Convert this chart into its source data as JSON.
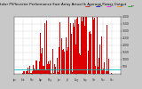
{
  "title": "Solar PV/Inverter Performance East Array Actual & Average Power Output",
  "bg_color": "#c8c8c8",
  "plot_bg": "#ffffff",
  "bar_color": "#dd0000",
  "avg_line_color": "#00bbbb",
  "grid_color": "#999999",
  "ylim": [
    0,
    4000
  ],
  "yticks": [
    500,
    1000,
    1500,
    2000,
    2500,
    3000,
    3500,
    4000
  ],
  "ytick_labels": [
    "500",
    "1000",
    "1500",
    "2000",
    "2500",
    "3000",
    "3500",
    "4000"
  ],
  "avg_line_y": 320,
  "n_bars": 144,
  "seed": 12,
  "legend_colors": [
    "#dd0000",
    "#0000dd",
    "#ff00ff",
    "#ff8800",
    "#00aa00"
  ],
  "legend_labels": [
    "Act",
    "Avg",
    "A+S",
    "A-S",
    "Prd"
  ],
  "title_fontsize": 2.8,
  "tick_fontsize": 2.2
}
